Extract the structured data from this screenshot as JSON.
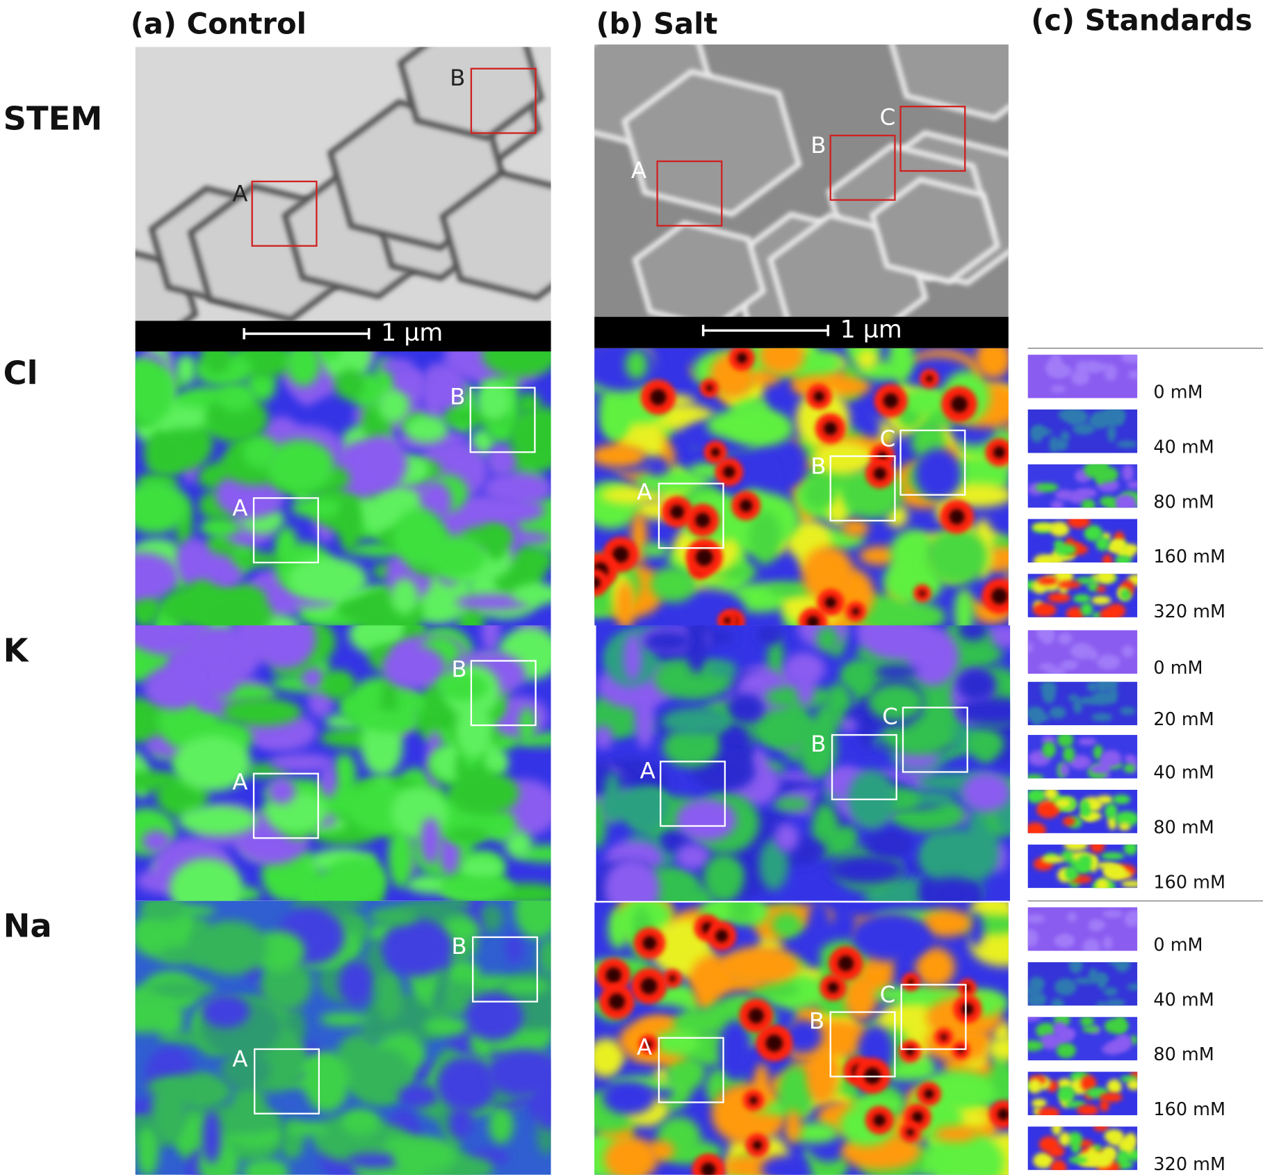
{
  "columns": [
    "(a) Control",
    "(b) Salt",
    "(c) Standards"
  ],
  "rows": [
    "STEM",
    "Cl",
    "K",
    "Na"
  ],
  "scale_bar": "1 µm",
  "regions": {
    "control": [
      "A",
      "B"
    ],
    "salt": [
      "A",
      "B",
      "C"
    ]
  },
  "standards": {
    "Cl": [
      "0 mM",
      "40 mM",
      "80 mM",
      "160 mM",
      "320 mM"
    ],
    "K": [
      "0 mM",
      "20 mM",
      "40 mM",
      "80 mM",
      "160 mM"
    ],
    "Na": [
      "0 mM",
      "40 mM",
      "80 mM",
      "160 mM",
      "320 mM"
    ]
  }
}
